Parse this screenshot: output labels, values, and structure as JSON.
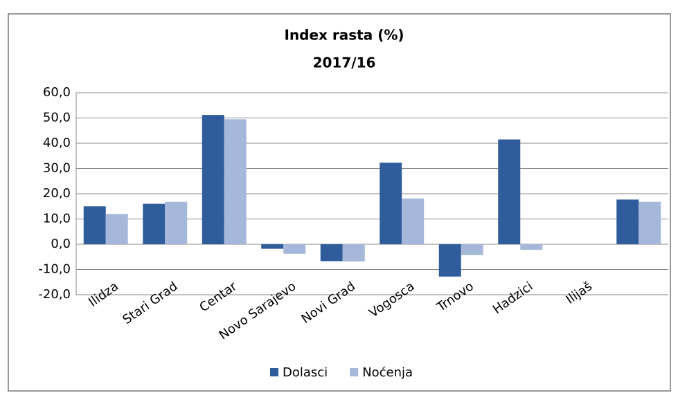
{
  "chart_data": {
    "type": "bar",
    "title": "Index rasta (%)",
    "subtitle": "2017/16",
    "categories": [
      "Ilidza",
      "Stari Grad",
      "Centar",
      "Novo Sarajevo",
      "Novi Grad",
      "Vogosca",
      "Trnovo",
      "Hadzici",
      "Ilijaš",
      null
    ],
    "series": [
      {
        "name": "Dolasci",
        "color": "#2f5d9b",
        "values": [
          15,
          16,
          51.2,
          -1.8,
          -6.7,
          32.3,
          -12.8,
          41.5,
          null,
          17.7
        ]
      },
      {
        "name": "Noćenja",
        "color": "#a6b8da",
        "values": [
          12,
          16.8,
          49.5,
          -3.8,
          -6.8,
          18.1,
          -4.3,
          -2.2,
          null,
          16.8
        ]
      }
    ],
    "ylim": [
      -20,
      60
    ],
    "yticks": [
      {
        "value": -20,
        "label": "-20,0"
      },
      {
        "value": -10,
        "label": "-10,0"
      },
      {
        "value": 0,
        "label": "0,0"
      },
      {
        "value": 10,
        "label": "10,0"
      },
      {
        "value": 20,
        "label": "20,0"
      },
      {
        "value": 30,
        "label": "30,0"
      },
      {
        "value": 40,
        "label": "40,0"
      },
      {
        "value": 50,
        "label": "50,0"
      },
      {
        "value": 60,
        "label": "60,0"
      }
    ],
    "grid": true,
    "legend": "bottom"
  }
}
